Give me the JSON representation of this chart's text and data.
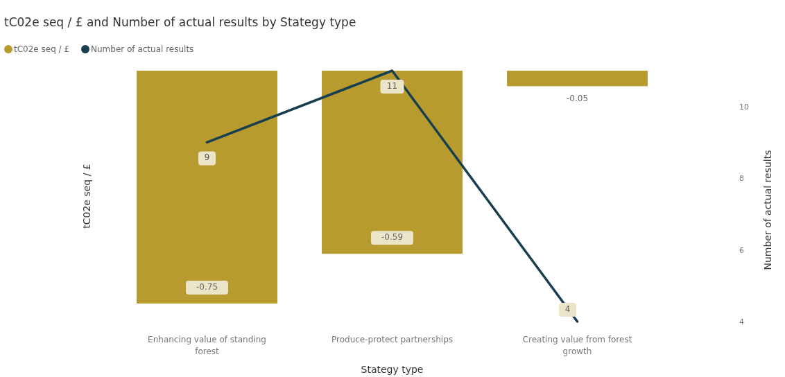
{
  "chart_data": {
    "type": "bar",
    "title": "tC02e seq / £ and Number of actual results by Stategy type",
    "xlabel": "Stategy type",
    "ylabel": "tC02e seq / £",
    "y2label": "Number of actual results",
    "categories": [
      "Enhancing value of standing forest",
      "Produce-protect partnerships",
      "Creating value from forest growth"
    ],
    "series": [
      {
        "name": "tC02e seq / £",
        "color": "#b89b2e",
        "values": [
          -0.75,
          -0.59,
          -0.05
        ]
      },
      {
        "name": "Number of actual results",
        "type": "line",
        "axis": "y2",
        "color": "#173f4f",
        "values": [
          9,
          11,
          4
        ]
      }
    ],
    "y2lim": [
      4,
      11
    ],
    "y2ticks": [
      4,
      6,
      8,
      10
    ],
    "data_labels": true,
    "legend": "top left",
    "marker": "none"
  }
}
